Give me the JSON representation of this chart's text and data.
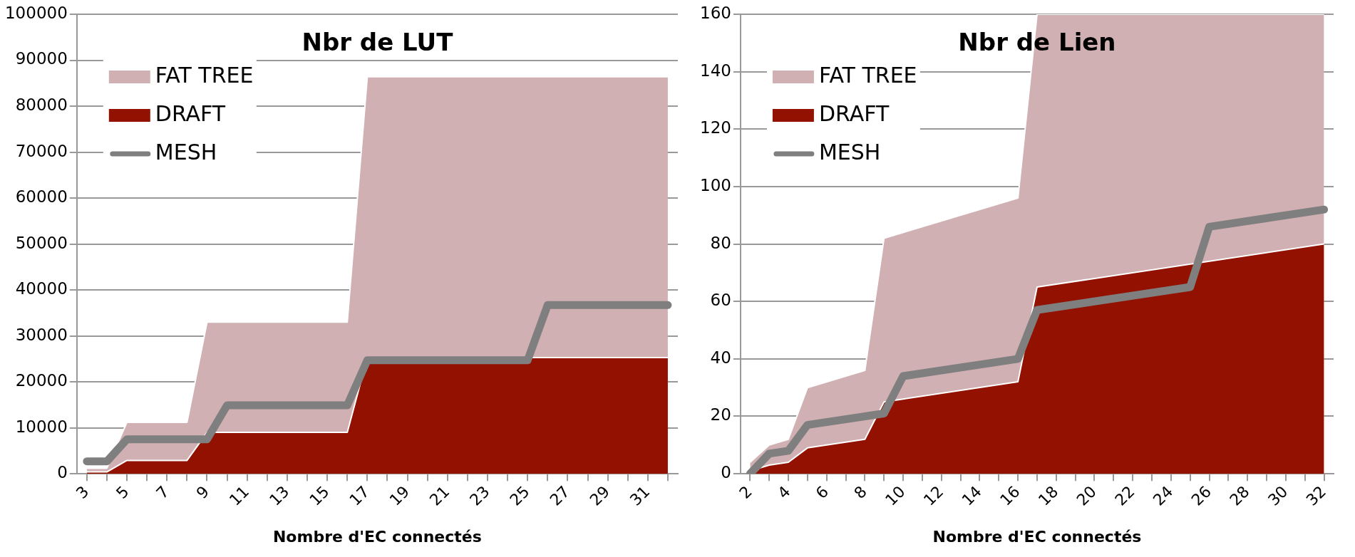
{
  "chart_data": [
    {
      "type": "area",
      "title": "Nbr de LUT",
      "xlabel": "Nombre d'EC connectés",
      "xlim": [
        2.5,
        32.5
      ],
      "xticks": [
        3,
        {
          "value": 4,
          "label": null
        },
        5,
        {
          "value": 6,
          "label": null
        },
        7,
        {
          "value": 8,
          "label": null
        },
        9,
        {
          "value": 10,
          "label": null
        },
        11,
        {
          "value": 12,
          "label": null
        },
        13,
        {
          "value": 14,
          "label": null
        },
        15,
        {
          "value": 16,
          "label": null
        },
        17,
        {
          "value": 18,
          "label": null
        },
        19,
        {
          "value": 20,
          "label": null
        },
        21,
        {
          "value": 22,
          "label": null
        },
        23,
        {
          "value": 24,
          "label": null
        },
        25,
        {
          "value": 26,
          "label": null
        },
        27,
        {
          "value": 28,
          "label": null
        },
        29,
        {
          "value": 30,
          "label": null
        },
        31,
        {
          "value": 32,
          "label": null
        }
      ],
      "ylim": [
        0,
        100000
      ],
      "yticks": [
        0,
        10000,
        20000,
        30000,
        40000,
        50000,
        60000,
        70000,
        80000,
        90000,
        100000
      ],
      "grid": "y",
      "legend": "top left",
      "series": [
        {
          "name": "FAT TREE",
          "type": "area",
          "color": "#d0b0b2",
          "x": [
            3,
            4,
            5,
            8,
            9,
            16,
            17,
            32
          ],
          "values": [
            1200,
            1200,
            11200,
            11200,
            33000,
            33000,
            86400,
            86400
          ]
        },
        {
          "name": "DRAFT",
          "type": "area",
          "color": "#921100",
          "x": [
            3,
            4,
            5,
            8,
            9,
            16,
            17,
            32
          ],
          "values": [
            400,
            400,
            2900,
            2900,
            9000,
            9000,
            25300,
            25300
          ]
        },
        {
          "name": "MESH",
          "type": "line",
          "color": "#7f7f7f",
          "x": [
            3,
            4,
            5,
            9,
            10,
            16,
            17,
            25,
            26,
            32
          ],
          "values": [
            2700,
            2700,
            7500,
            7500,
            14900,
            14900,
            24700,
            24700,
            36700,
            36700
          ]
        }
      ]
    },
    {
      "type": "area",
      "title": "Nbr de Lien",
      "xlabel": "Nombre d'EC connectés",
      "xlim": [
        1.5,
        32.5
      ],
      "xticks": [
        2,
        {
          "value": 3,
          "label": null
        },
        4,
        {
          "value": 5,
          "label": null
        },
        6,
        {
          "value": 7,
          "label": null
        },
        8,
        {
          "value": 9,
          "label": null
        },
        10,
        {
          "value": 11,
          "label": null
        },
        12,
        {
          "value": 13,
          "label": null
        },
        14,
        {
          "value": 15,
          "label": null
        },
        16,
        {
          "value": 17,
          "label": null
        },
        18,
        {
          "value": 19,
          "label": null
        },
        20,
        {
          "value": 21,
          "label": null
        },
        22,
        {
          "value": 23,
          "label": null
        },
        24,
        {
          "value": 25,
          "label": null
        },
        26,
        {
          "value": 27,
          "label": null
        },
        28,
        {
          "value": 29,
          "label": null
        },
        30,
        {
          "value": 31,
          "label": null
        },
        32
      ],
      "ylim": [
        0,
        160
      ],
      "yticks": [
        0,
        20,
        40,
        60,
        80,
        100,
        120,
        140,
        160
      ],
      "grid": "y",
      "legend": "top left",
      "series": [
        {
          "name": "FAT TREE",
          "type": "area",
          "color": "#d0b0b2",
          "x": [
            2,
            3,
            4,
            5,
            8,
            9,
            16,
            17,
            32
          ],
          "values": [
            4,
            10,
            12,
            30,
            36,
            82,
            96,
            160,
            160
          ]
        },
        {
          "name": "DRAFT",
          "type": "area",
          "color": "#921100",
          "x": [
            2,
            3,
            4,
            5,
            8,
            9,
            10,
            16,
            17,
            32
          ],
          "values": [
            1,
            3,
            4,
            9,
            12,
            25,
            26,
            32,
            65,
            80
          ]
        },
        {
          "name": "MESH",
          "type": "line",
          "color": "#7f7f7f",
          "x": [
            2,
            3,
            4,
            5,
            9,
            10,
            16,
            17,
            25,
            26,
            32
          ],
          "values": [
            0,
            7,
            8,
            17,
            21,
            34,
            40,
            57,
            65,
            86,
            92
          ]
        }
      ]
    }
  ]
}
